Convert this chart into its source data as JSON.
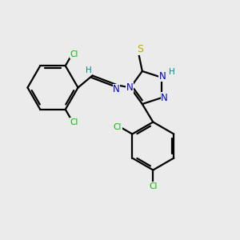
{
  "background_color": "#ebebeb",
  "atom_colors": {
    "C": "#000000",
    "N": "#0000cc",
    "S": "#bbaa00",
    "Cl": "#00bb00",
    "H": "#008888"
  },
  "bond_color": "#000000",
  "figsize": [
    3.0,
    3.0
  ],
  "dpi": 100
}
